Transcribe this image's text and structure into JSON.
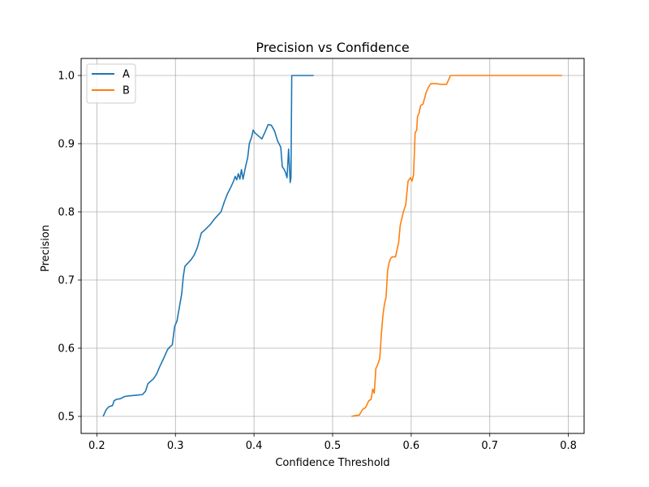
{
  "chart_data": {
    "type": "line",
    "title": "Precision vs Confidence",
    "xlabel": "Confidence Threshold",
    "ylabel": "Precision",
    "xlim": [
      0.18,
      0.82
    ],
    "ylim": [
      0.475,
      1.025
    ],
    "xticks": [
      0.2,
      0.3,
      0.4,
      0.5,
      0.6,
      0.7,
      0.8
    ],
    "xtick_labels": [
      "0.2",
      "0.3",
      "0.4",
      "0.5",
      "0.6",
      "0.7",
      "0.8"
    ],
    "yticks": [
      0.5,
      0.6,
      0.7,
      0.8,
      0.9,
      1.0
    ],
    "ytick_labels": [
      "0.5",
      "0.6",
      "0.7",
      "0.8",
      "0.9",
      "1.0"
    ],
    "grid": true,
    "legend": "top-left",
    "series": [
      {
        "name": "A",
        "color": "#1f77b4",
        "x": [
          0.208,
          0.212,
          0.215,
          0.22,
          0.222,
          0.225,
          0.23,
          0.235,
          0.24,
          0.25,
          0.258,
          0.262,
          0.265,
          0.268,
          0.272,
          0.276,
          0.28,
          0.285,
          0.29,
          0.293,
          0.296,
          0.299,
          0.302,
          0.305,
          0.308,
          0.31,
          0.312,
          0.32,
          0.324,
          0.328,
          0.333,
          0.337,
          0.344,
          0.35,
          0.354,
          0.358,
          0.362,
          0.366,
          0.37,
          0.374,
          0.376,
          0.378,
          0.38,
          0.382,
          0.384,
          0.386,
          0.389,
          0.392,
          0.394,
          0.397,
          0.399,
          0.401,
          0.405,
          0.41,
          0.414,
          0.418,
          0.422,
          0.426,
          0.43,
          0.434,
          0.436,
          0.438,
          0.44,
          0.442,
          0.444,
          0.445,
          0.446,
          0.447,
          0.448,
          0.449,
          0.452,
          0.46,
          0.47,
          0.476
        ],
        "y": [
          0.5,
          0.51,
          0.514,
          0.516,
          0.523,
          0.525,
          0.526,
          0.529,
          0.53,
          0.531,
          0.532,
          0.537,
          0.548,
          0.551,
          0.555,
          0.562,
          0.573,
          0.585,
          0.598,
          0.602,
          0.605,
          0.632,
          0.64,
          0.66,
          0.68,
          0.705,
          0.72,
          0.73,
          0.737,
          0.748,
          0.769,
          0.773,
          0.781,
          0.79,
          0.795,
          0.8,
          0.814,
          0.826,
          0.835,
          0.845,
          0.852,
          0.847,
          0.856,
          0.848,
          0.862,
          0.848,
          0.865,
          0.88,
          0.9,
          0.91,
          0.92,
          0.916,
          0.912,
          0.907,
          0.917,
          0.928,
          0.927,
          0.919,
          0.904,
          0.895,
          0.866,
          0.863,
          0.858,
          0.85,
          0.892,
          0.868,
          0.843,
          0.85,
          1.0,
          1.0,
          1.0,
          1.0,
          1.0,
          1.0
        ]
      },
      {
        "name": "B",
        "color": "#ff7f0e",
        "x": [
          0.524,
          0.528,
          0.534,
          0.538,
          0.542,
          0.546,
          0.549,
          0.551,
          0.553,
          0.555,
          0.557,
          0.558,
          0.56,
          0.562,
          0.564,
          0.566,
          0.568,
          0.57,
          0.572,
          0.574,
          0.576,
          0.58,
          0.584,
          0.586,
          0.588,
          0.59,
          0.593,
          0.596,
          0.599,
          0.601,
          0.603,
          0.605,
          0.607,
          0.608,
          0.61,
          0.612,
          0.615,
          0.619,
          0.622,
          0.625,
          0.632,
          0.638,
          0.645,
          0.65,
          0.66,
          0.68,
          0.72,
          0.76,
          0.792
        ],
        "y": [
          0.5,
          0.501,
          0.502,
          0.51,
          0.513,
          0.523,
          0.525,
          0.54,
          0.534,
          0.57,
          0.575,
          0.578,
          0.585,
          0.62,
          0.648,
          0.665,
          0.675,
          0.714,
          0.726,
          0.732,
          0.734,
          0.734,
          0.755,
          0.78,
          0.79,
          0.8,
          0.81,
          0.845,
          0.85,
          0.845,
          0.854,
          0.916,
          0.92,
          0.94,
          0.945,
          0.956,
          0.958,
          0.975,
          0.983,
          0.988,
          0.988,
          0.987,
          0.987,
          1.0,
          1.0,
          1.0,
          1.0,
          1.0,
          1.0
        ]
      }
    ]
  }
}
